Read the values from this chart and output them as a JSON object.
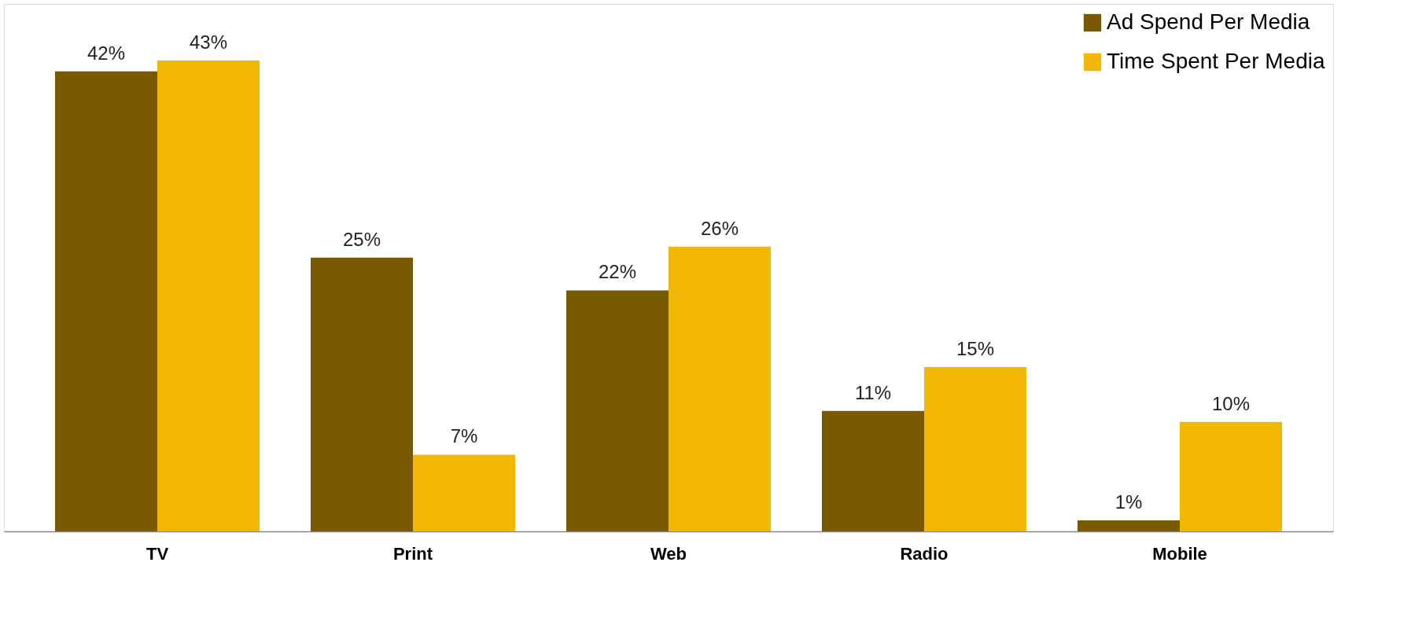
{
  "chart_data": {
    "type": "bar",
    "categories": [
      "TV",
      "Print",
      "Web",
      "Radio",
      "Mobile"
    ],
    "series": [
      {
        "name": "Ad Spend Per Media",
        "color": "#7a5a00",
        "values": [
          42,
          25,
          22,
          11,
          1
        ],
        "value_labels": [
          "42%",
          "25%",
          "22%",
          "11%",
          "1%"
        ]
      },
      {
        "name": "Time Spent Per Media",
        "color": "#f2b705",
        "values": [
          43,
          7,
          26,
          15,
          10
        ],
        "value_labels": [
          "43%",
          "7%",
          "26%",
          "15%",
          "10%"
        ]
      }
    ],
    "legend": "top right",
    "grid": false,
    "tick_labels": "x"
  }
}
